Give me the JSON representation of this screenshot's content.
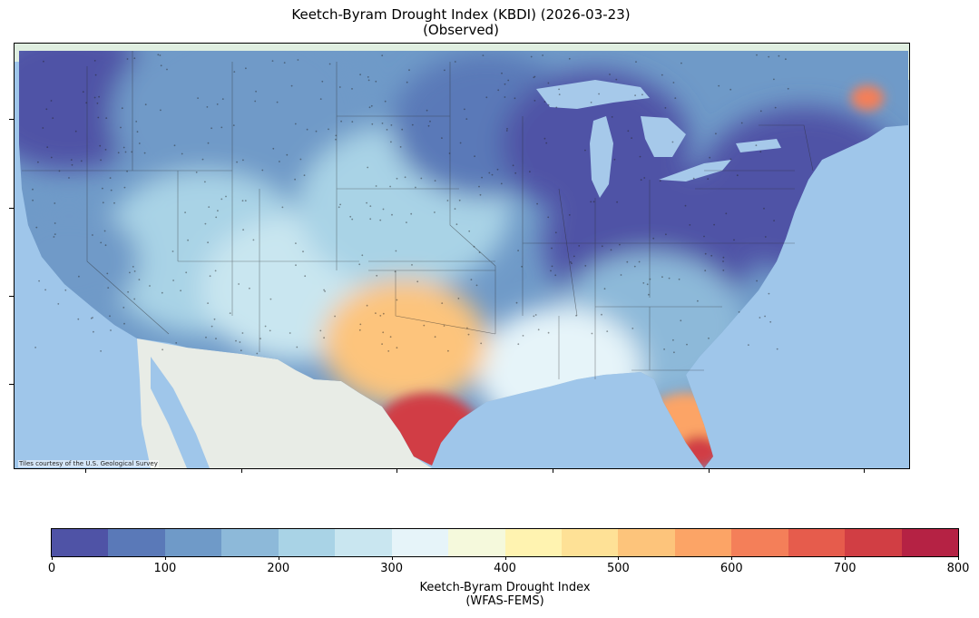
{
  "title": {
    "line1": "Keetch-Byram Drought Index (KBDI) (2026-03-23)",
    "line2": "(Observed)"
  },
  "map": {
    "attribution": "Tiles courtesy of the U.S. Geological Survey",
    "base_colors": {
      "ocean": "#9fc6ea",
      "land": "#e8ece6",
      "canada": "#dfeee0",
      "lakes": "#9fc6ea"
    },
    "regions": [
      {
        "name": "pacific-northwest",
        "kbdi": 25
      },
      {
        "name": "northern-rockies",
        "kbdi": 110
      },
      {
        "name": "great-basin",
        "kbdi": 210
      },
      {
        "name": "california",
        "kbdi": 120
      },
      {
        "name": "southwest",
        "kbdi": 250
      },
      {
        "name": "central-plains",
        "kbdi": 230
      },
      {
        "name": "upper-midwest",
        "kbdi": 80
      },
      {
        "name": "great-lakes",
        "kbdi": 20
      },
      {
        "name": "ohio-valley",
        "kbdi": 40
      },
      {
        "name": "northeast",
        "kbdi": 15
      },
      {
        "name": "southeast",
        "kbdi": 150
      },
      {
        "name": "gulf-coast",
        "kbdi": 320
      },
      {
        "name": "texas",
        "kbdi": 520
      },
      {
        "name": "south-texas",
        "kbdi": 700
      },
      {
        "name": "florida",
        "kbdi": 560
      },
      {
        "name": "south-florida",
        "kbdi": 720
      },
      {
        "name": "northern-maine",
        "kbdi": 620
      }
    ]
  },
  "colorbar": {
    "colors": [
      "#4f53a6",
      "#5a79b8",
      "#6f9ac8",
      "#8db9d9",
      "#a9d3e6",
      "#c9e6f0",
      "#e6f4f9",
      "#f5f9dc",
      "#fff3b0",
      "#fee196",
      "#fdc47b",
      "#fca466",
      "#f47f59",
      "#e65c4c",
      "#d13e44",
      "#b52244"
    ],
    "ticks": [
      "0",
      "100",
      "200",
      "300",
      "400",
      "500",
      "600",
      "700",
      "800"
    ],
    "label_line1": "Keetch-Byram Drought Index",
    "label_line2": "(WFAS-FEMS)"
  }
}
